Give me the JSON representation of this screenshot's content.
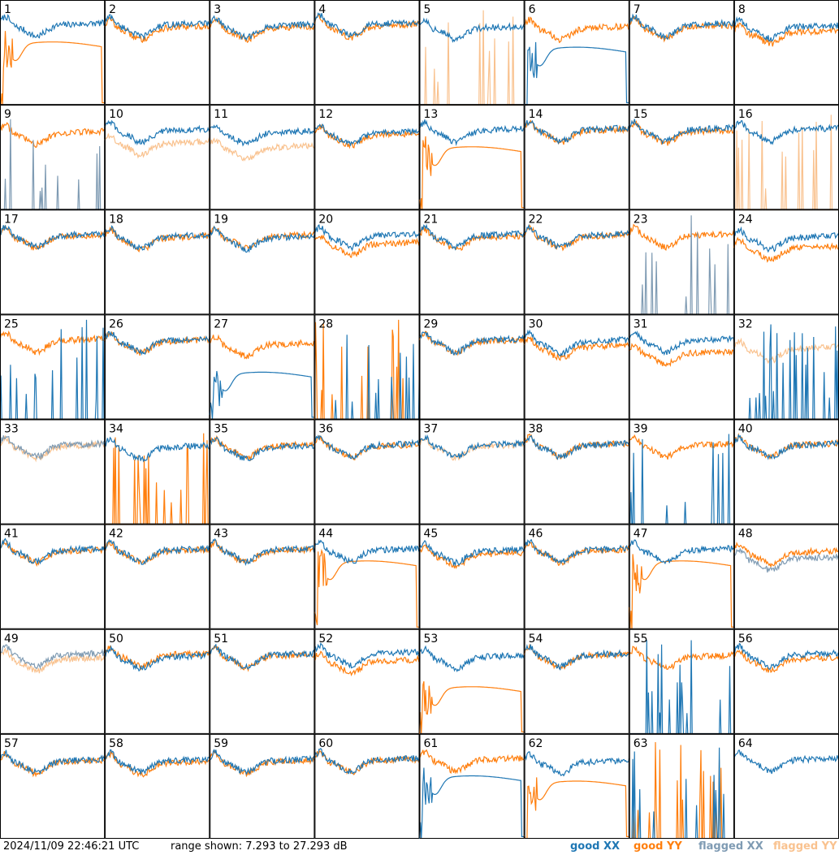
{
  "footer": {
    "timestamp": "2024/11/09 22:46:21 UTC",
    "range": "range shown: 7.293 to 27.293 dB"
  },
  "legend": {
    "good_xx": "good XX",
    "good_yy": "good YY",
    "flagged_xx": "flagged XX",
    "flagged_yy": "flagged YY"
  },
  "colors": {
    "good_xx": "#1f77b4",
    "good_yy": "#ff7f0e",
    "flagged_xx": "#7f9bb3",
    "flagged_yy": "#f9c28f"
  },
  "chart_data": {
    "type": "line",
    "ylim": [
      7.293,
      27.293
    ],
    "yunit": "dB",
    "grid": {
      "rows": 8,
      "cols": 8
    },
    "panels": [
      {
        "id": "1",
        "xx": "good",
        "yy": "good",
        "xx_level": 0.75,
        "yy_level": 0.55,
        "yy_shape": "hump"
      },
      {
        "id": "2",
        "xx": "good",
        "yy": "good",
        "xx_level": 0.75,
        "yy_level": 0.72
      },
      {
        "id": "3",
        "xx": "good",
        "yy": "good",
        "xx_level": 0.74,
        "yy_level": 0.72
      },
      {
        "id": "4",
        "xx": "good",
        "yy": "good",
        "xx_level": 0.76,
        "yy_level": 0.74
      },
      {
        "id": "5",
        "xx": "good",
        "yy": "flagged",
        "xx_level": 0.72,
        "yy_shape": "spikes"
      },
      {
        "id": "6",
        "xx": "good",
        "yy": "good",
        "xx_level": 0.5,
        "yy_level": 0.72,
        "xx_shape": "hump"
      },
      {
        "id": "7",
        "xx": "good",
        "yy": "good",
        "xx_level": 0.75,
        "yy_level": 0.73
      },
      {
        "id": "8",
        "xx": "good",
        "yy": "good",
        "xx_level": 0.73,
        "yy_level": 0.68
      },
      {
        "id": "9",
        "xx": "flagged",
        "yy": "good",
        "yy_level": 0.72,
        "xx_shape": "spikes"
      },
      {
        "id": "10",
        "xx": "good",
        "yy": "flagged",
        "xx_level": 0.74,
        "yy_level": 0.62
      },
      {
        "id": "11",
        "xx": "good",
        "yy": "flagged",
        "xx_level": 0.72,
        "yy_level": 0.58
      },
      {
        "id": "12",
        "xx": "good",
        "yy": "good",
        "xx_level": 0.72,
        "yy_level": 0.7
      },
      {
        "id": "13",
        "xx": "good",
        "yy": "good",
        "xx_level": 0.74,
        "yy_level": 0.55,
        "yy_shape": "hump"
      },
      {
        "id": "14",
        "xx": "good",
        "yy": "good",
        "xx_level": 0.75,
        "yy_level": 0.74
      },
      {
        "id": "15",
        "xx": "good",
        "yy": "good",
        "xx_level": 0.75,
        "yy_level": 0.73
      },
      {
        "id": "16",
        "xx": "good",
        "yy": "flagged",
        "xx_level": 0.75,
        "yy_shape": "spikes"
      },
      {
        "id": "17",
        "xx": "good",
        "yy": "good",
        "xx_level": 0.74,
        "yy_level": 0.73
      },
      {
        "id": "18",
        "xx": "good",
        "yy": "good",
        "xx_level": 0.73,
        "yy_level": 0.72
      },
      {
        "id": "19",
        "xx": "good",
        "yy": "good",
        "xx_level": 0.72,
        "yy_level": 0.73
      },
      {
        "id": "20",
        "xx": "good",
        "yy": "good",
        "xx_level": 0.74,
        "yy_level": 0.66
      },
      {
        "id": "21",
        "xx": "good",
        "yy": "good",
        "xx_level": 0.74,
        "yy_level": 0.72
      },
      {
        "id": "22",
        "xx": "good",
        "yy": "good",
        "xx_level": 0.74,
        "yy_level": 0.73
      },
      {
        "id": "23",
        "xx": "flagged",
        "yy": "good",
        "yy_level": 0.74,
        "xx_shape": "spikes"
      },
      {
        "id": "24",
        "xx": "good",
        "yy": "good",
        "xx_level": 0.72,
        "yy_level": 0.62
      },
      {
        "id": "25",
        "xx": "good",
        "yy": "good",
        "xx_level": 0.1,
        "yy_level": 0.74,
        "xx_shape": "spikes"
      },
      {
        "id": "26",
        "xx": "good",
        "yy": "good",
        "xx_level": 0.74,
        "yy_level": 0.73
      },
      {
        "id": "27",
        "xx": "good",
        "yy": "good",
        "xx_level": 0.4,
        "yy_level": 0.7,
        "xx_shape": "hump"
      },
      {
        "id": "28",
        "xx": "good",
        "yy": "good",
        "xx_shape": "spikes",
        "yy_shape": "spikes"
      },
      {
        "id": "29",
        "xx": "good",
        "yy": "good",
        "xx_level": 0.74,
        "yy_level": 0.73
      },
      {
        "id": "30",
        "xx": "good",
        "yy": "good",
        "xx_level": 0.73,
        "yy_level": 0.68
      },
      {
        "id": "31",
        "xx": "good",
        "yy": "good",
        "xx_level": 0.74,
        "yy_level": 0.62
      },
      {
        "id": "32",
        "xx": "good",
        "yy": "flagged",
        "xx_shape": "spikes",
        "yy_level": 0.66
      },
      {
        "id": "33",
        "xx": "flagged",
        "yy": "flagged",
        "xx_level": 0.74,
        "yy_level": 0.73
      },
      {
        "id": "34",
        "xx": "good",
        "yy": "good",
        "xx_level": 0.72,
        "yy_shape": "spikes"
      },
      {
        "id": "35",
        "xx": "good",
        "yy": "good",
        "xx_level": 0.72,
        "yy_level": 0.73
      },
      {
        "id": "36",
        "xx": "good",
        "yy": "good",
        "xx_level": 0.74,
        "yy_level": 0.73
      },
      {
        "id": "37",
        "xx": "good",
        "yy": "flagged",
        "xx_level": 0.74,
        "yy_level": 0.73
      },
      {
        "id": "38",
        "xx": "good",
        "yy": "good",
        "xx_level": 0.74,
        "yy_level": 0.74
      },
      {
        "id": "39",
        "xx": "good",
        "yy": "good",
        "xx_shape": "spikes",
        "yy_level": 0.74
      },
      {
        "id": "40",
        "xx": "good",
        "yy": "good",
        "xx_level": 0.74,
        "yy_level": 0.74
      },
      {
        "id": "41",
        "xx": "good",
        "yy": "good",
        "xx_level": 0.74,
        "yy_level": 0.73
      },
      {
        "id": "42",
        "xx": "good",
        "yy": "good",
        "xx_level": 0.74,
        "yy_level": 0.73
      },
      {
        "id": "43",
        "xx": "good",
        "yy": "good",
        "xx_level": 0.74,
        "yy_level": 0.73
      },
      {
        "id": "44",
        "xx": "good",
        "yy": "good",
        "xx_level": 0.74,
        "yy_level": 0.6,
        "yy_shape": "hump"
      },
      {
        "id": "45",
        "xx": "good",
        "yy": "good",
        "xx_level": 0.73,
        "yy_level": 0.7
      },
      {
        "id": "46",
        "xx": "good",
        "yy": "good",
        "xx_level": 0.74,
        "yy_level": 0.73
      },
      {
        "id": "47",
        "xx": "good",
        "yy": "good",
        "xx_level": 0.74,
        "yy_level": 0.6,
        "yy_shape": "hump"
      },
      {
        "id": "48",
        "xx": "flagged",
        "yy": "good",
        "xx_level": 0.66,
        "yy_level": 0.72
      },
      {
        "id": "49",
        "xx": "flagged",
        "yy": "flagged",
        "xx_level": 0.74,
        "yy_level": 0.7
      },
      {
        "id": "50",
        "xx": "good",
        "yy": "good",
        "xx_level": 0.72,
        "yy_level": 0.74
      },
      {
        "id": "51",
        "xx": "good",
        "yy": "good",
        "xx_level": 0.74,
        "yy_level": 0.73
      },
      {
        "id": "52",
        "xx": "good",
        "yy": "good",
        "xx_level": 0.75,
        "yy_level": 0.68
      },
      {
        "id": "53",
        "xx": "good",
        "yy": "good",
        "xx_level": 0.72,
        "yy_level": 0.4,
        "yy_shape": "hump"
      },
      {
        "id": "54",
        "xx": "good",
        "yy": "good",
        "xx_level": 0.74,
        "yy_level": 0.73
      },
      {
        "id": "55",
        "xx": "good",
        "yy": "good",
        "xx_shape": "spikes",
        "yy_level": 0.72
      },
      {
        "id": "56",
        "xx": "good",
        "yy": "good",
        "xx_level": 0.74,
        "yy_level": 0.7
      },
      {
        "id": "57",
        "xx": "good",
        "yy": "good",
        "xx_level": 0.73,
        "yy_level": 0.72
      },
      {
        "id": "58",
        "xx": "good",
        "yy": "good",
        "xx_level": 0.73,
        "yy_level": 0.71
      },
      {
        "id": "59",
        "xx": "good",
        "yy": "good",
        "xx_level": 0.73,
        "yy_level": 0.72
      },
      {
        "id": "60",
        "xx": "good",
        "yy": "good",
        "xx_level": 0.74,
        "yy_level": 0.73
      },
      {
        "id": "61",
        "xx": "good",
        "yy": "good",
        "xx_level": 0.55,
        "yy_level": 0.74,
        "xx_shape": "hump"
      },
      {
        "id": "62",
        "xx": "good",
        "yy": "good",
        "xx_level": 0.72,
        "yy_level": 0.5,
        "yy_shape": "hump"
      },
      {
        "id": "63",
        "xx": "good",
        "yy": "good",
        "xx_shape": "spikes",
        "yy_shape": "spikes"
      },
      {
        "id": "64",
        "xx": "good",
        "yy": "good",
        "xx_level": 0.74,
        "yy_shape": "none"
      }
    ]
  }
}
